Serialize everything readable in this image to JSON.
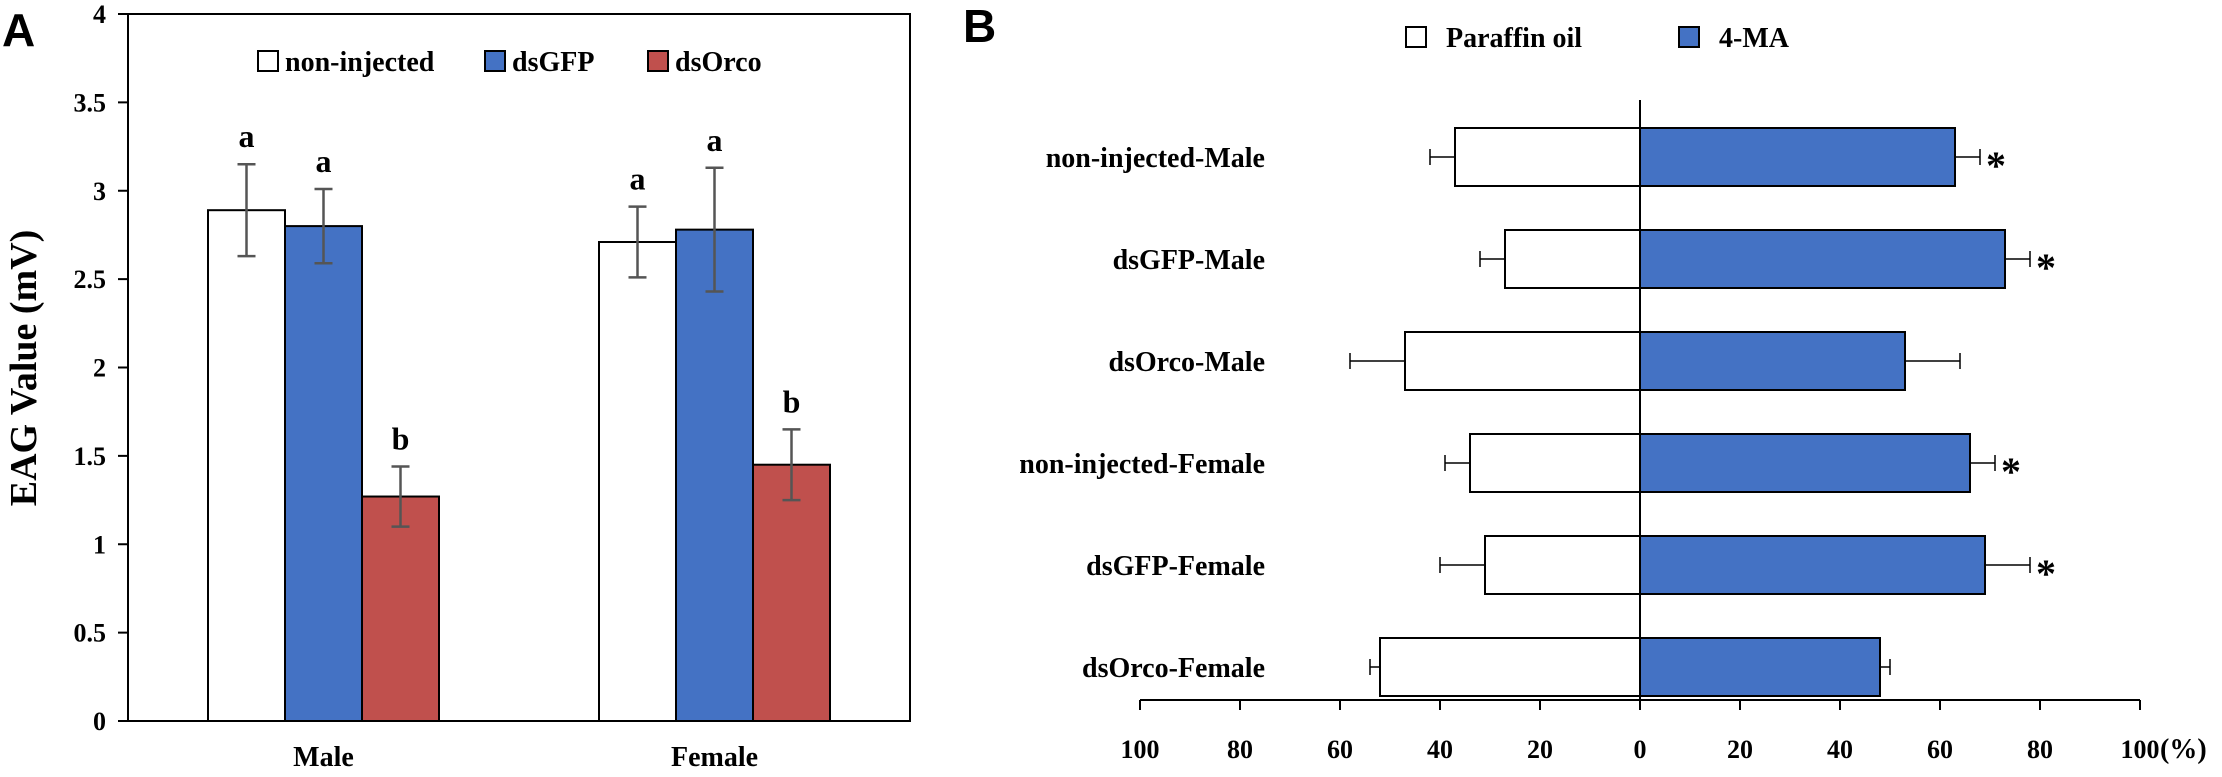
{
  "chart_data": [
    {
      "type": "bar",
      "panel": "A",
      "title": "",
      "xlabel": "",
      "ylabel": "EAG Value (mV)",
      "ylim": [
        0,
        4
      ],
      "yticks": [
        "0",
        "0.5",
        "1",
        "1.5",
        "2",
        "2.5",
        "3",
        "3.5",
        "4"
      ],
      "categories": [
        "Male",
        "Female"
      ],
      "legend_position": "top",
      "series": [
        {
          "name": "non-injected",
          "color": "#ffffff",
          "values": [
            2.89,
            2.71
          ],
          "errors": [
            0.26,
            0.2
          ],
          "letters": [
            "a",
            "a"
          ]
        },
        {
          "name": "dsGFP",
          "color": "#4472c4",
          "values": [
            2.8,
            2.78
          ],
          "errors": [
            0.21,
            0.35
          ],
          "letters": [
            "a",
            "a"
          ]
        },
        {
          "name": "dsOrco",
          "color": "#c0504d",
          "values": [
            1.27,
            1.45
          ],
          "errors": [
            0.17,
            0.2
          ],
          "letters": [
            "b",
            "b"
          ]
        }
      ]
    },
    {
      "type": "bar",
      "orientation": "horizontal-diverging",
      "panel": "B",
      "title": "",
      "xlabel": "(%)",
      "ylabel": "",
      "xlim": [
        -100,
        100
      ],
      "xticks": [
        "100",
        "80",
        "60",
        "40",
        "20",
        "0",
        "20",
        "40",
        "60",
        "80",
        "100"
      ],
      "categories": [
        "non-injected-Male",
        "dsGFP-Male",
        "dsOrco-Male",
        "non-injected-Female",
        "dsGFP-Female",
        "dsOrco-Female"
      ],
      "legend_position": "top",
      "series": [
        {
          "name": "Paraffin oil",
          "color": "#ffffff",
          "side": "left",
          "values": [
            37,
            27,
            47,
            34,
            31,
            52
          ],
          "errors": [
            5,
            5,
            11,
            5,
            9,
            2
          ]
        },
        {
          "name": "4-MA",
          "color": "#4472c4",
          "side": "right",
          "values": [
            63,
            73,
            53,
            66,
            69,
            48
          ],
          "errors": [
            5,
            5,
            11,
            5,
            9,
            2
          ]
        }
      ],
      "significance": [
        "*",
        "*",
        "",
        "*",
        "*",
        ""
      ]
    }
  ]
}
